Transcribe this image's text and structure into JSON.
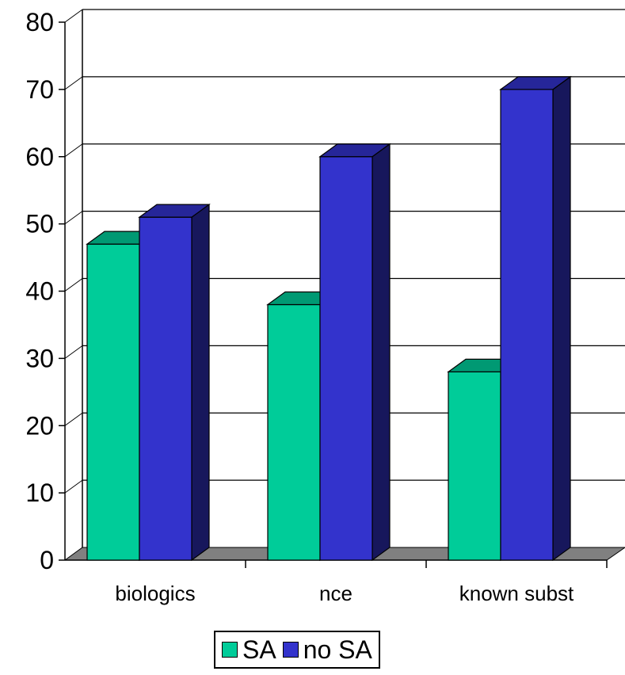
{
  "chart_data": {
    "type": "bar",
    "categories": [
      "biologics",
      "nce",
      "known subst"
    ],
    "series": [
      {
        "name": "SA",
        "values": [
          47,
          38,
          28
        ],
        "color": "#00CC99"
      },
      {
        "name": "no SA",
        "values": [
          51,
          60,
          70
        ],
        "color": "#3333CC"
      }
    ],
    "yticks": [
      "0",
      "10",
      "20",
      "30",
      "40",
      "50",
      "60",
      "70",
      "80"
    ],
    "ylim": [
      0,
      80
    ],
    "grid": true,
    "style": "3d-clustered",
    "legend_position": "bottom"
  }
}
